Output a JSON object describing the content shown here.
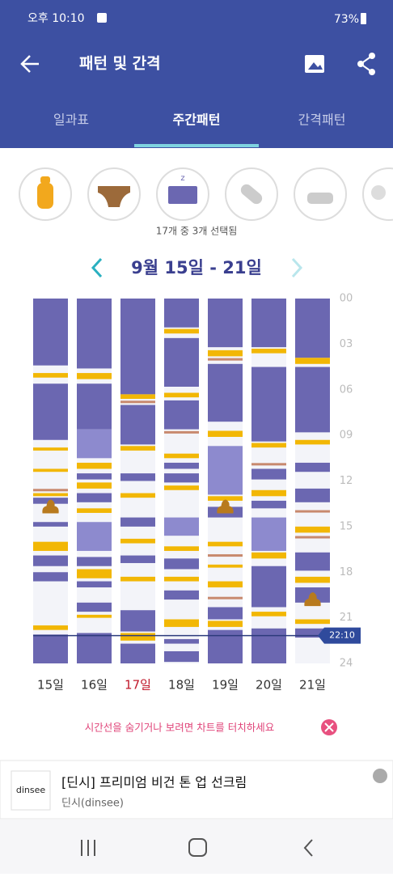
{
  "status_bar": {
    "time": "오후 10:10",
    "battery": "73%"
  },
  "header": {
    "title": "패턴 및 간격"
  },
  "tabs": {
    "items": [
      "일과표",
      "주간패턴",
      "간격패턴"
    ],
    "active": 1
  },
  "selection_text": "17개 중 3개 선택됨",
  "week_range": "9월 15일 - 21일",
  "chart": {
    "ylim": [
      0,
      24
    ],
    "yticks": [
      {
        "value": 0,
        "label": "00"
      },
      {
        "value": 3,
        "label": "03"
      },
      {
        "value": 6,
        "label": "06"
      },
      {
        "value": 9,
        "label": "09"
      },
      12,
      15,
      18,
      21,
      24
    ],
    "colors": {
      "sleep": "#6b67b1",
      "light": "#8d8ace",
      "feed": "#f2b705",
      "diaper": "#c8896e",
      "poop": "#b87a1e"
    },
    "current_time": {
      "value": 22.17,
      "label": "22:10"
    },
    "days": [
      {
        "label": "15일",
        "label_color": "#333333",
        "sleep": [
          [
            0,
            4.4
          ],
          [
            5.6,
            9.3
          ],
          [
            13.1,
            13.5
          ],
          [
            14.7,
            15.0
          ],
          [
            16.9,
            17.6
          ],
          [
            18.0,
            18.6
          ],
          [
            22.1,
            24
          ]
        ],
        "light": [],
        "feed": [
          [
            4.9,
            5.2
          ],
          [
            9.8,
            10.0
          ],
          [
            11.2,
            11.4
          ],
          [
            12.8,
            13.0
          ],
          [
            16.0,
            16.6
          ],
          [
            21.5,
            21.8
          ]
        ],
        "diaper": [
          12.6
        ],
        "poop": [
          13.7
        ]
      },
      {
        "label": "16일",
        "label_color": "#333333",
        "sleep": [
          [
            0,
            4.6
          ],
          [
            5.6,
            8.6
          ],
          [
            11.5,
            11.9
          ],
          [
            12.8,
            13.4
          ],
          [
            17.0,
            17.6
          ],
          [
            18.6,
            19.0
          ],
          [
            20.0,
            20.6
          ],
          [
            22.0,
            24
          ]
        ],
        "light": [
          [
            8.6,
            10.5
          ],
          [
            14.7,
            16.6
          ]
        ],
        "feed": [
          [
            4.9,
            5.3
          ],
          [
            10.8,
            11.2
          ],
          [
            12.1,
            12.5
          ],
          [
            13.8,
            14.1
          ],
          [
            17.8,
            18.4
          ],
          [
            20.8,
            21.0
          ]
        ],
        "diaper": [],
        "poop": []
      },
      {
        "label": "17일",
        "label_color": "#c0182a",
        "sleep": [
          [
            0,
            6.3
          ],
          [
            7.0,
            9.6
          ],
          [
            11.5,
            12.0
          ],
          [
            14.4,
            15.0
          ],
          [
            16.9,
            17.4
          ],
          [
            20.5,
            21.9
          ],
          [
            22.7,
            24
          ]
        ],
        "light": [],
        "feed": [
          [
            6.3,
            6.6
          ],
          [
            9.7,
            10.0
          ],
          [
            12.8,
            13.1
          ],
          [
            15.8,
            16.1
          ],
          [
            18.3,
            18.6
          ],
          [
            22.0,
            22.5
          ]
        ],
        "diaper": [
          6.8
        ],
        "poop": []
      },
      {
        "label": "18일",
        "label_color": "#333333",
        "sleep": [
          [
            0,
            1.9
          ],
          [
            2.6,
            5.8
          ],
          [
            6.7,
            8.6
          ],
          [
            10.8,
            11.2
          ],
          [
            11.5,
            12.1
          ],
          [
            17.1,
            17.8
          ],
          [
            19.2,
            19.8
          ],
          [
            22.4,
            22.7
          ],
          [
            23.2,
            23.9
          ]
        ],
        "light": [
          [
            14.4,
            15.6
          ]
        ],
        "feed": [
          [
            2.0,
            2.3
          ],
          [
            6.2,
            6.5
          ],
          [
            10.2,
            10.5
          ],
          [
            12.3,
            12.6
          ],
          [
            16.3,
            16.6
          ],
          [
            18.3,
            18.6
          ],
          [
            21.1,
            21.6
          ]
        ],
        "diaper": [
          8.8
        ],
        "poop": []
      },
      {
        "label": "19일",
        "label_color": "#333333",
        "sleep": [
          [
            0,
            3.2
          ],
          [
            4.3,
            8.1
          ],
          [
            13.7,
            14.4
          ],
          [
            20.3,
            21.1
          ],
          [
            21.8,
            24
          ]
        ],
        "light": [
          [
            9.7,
            12.9
          ]
        ],
        "feed": [
          [
            3.4,
            3.8
          ],
          [
            8.7,
            9.1
          ],
          [
            13.0,
            13.3
          ],
          [
            16.0,
            16.3
          ],
          [
            17.5,
            17.7
          ],
          [
            18.6,
            19.0
          ],
          [
            21.2,
            21.6
          ]
        ],
        "diaper": [
          4.0,
          16.9,
          19.7
        ],
        "poop": [
          13.7
        ]
      },
      {
        "label": "20일",
        "label_color": "#333333",
        "sleep": [
          [
            0,
            3.2
          ],
          [
            4.5,
            9.4
          ],
          [
            11.2,
            11.9
          ],
          [
            13.3,
            13.8
          ],
          [
            17.6,
            20.3
          ],
          [
            21.7,
            24
          ]
        ],
        "light": [
          [
            14.4,
            16.6
          ]
        ],
        "feed": [
          [
            3.3,
            3.6
          ],
          [
            9.5,
            9.8
          ],
          [
            12.6,
            13.0
          ],
          [
            16.7,
            17.1
          ],
          [
            20.6,
            20.9
          ]
        ],
        "diaper": [
          10.9
        ],
        "poop": []
      },
      {
        "label": "21일",
        "label_color": "#333333",
        "sleep": [
          [
            0,
            3.9
          ],
          [
            4.5,
            8.8
          ],
          [
            10.8,
            11.4
          ],
          [
            12.5,
            13.4
          ],
          [
            16.7,
            17.9
          ],
          [
            19.0,
            20.0
          ],
          [
            21.7,
            22.3
          ]
        ],
        "light": [],
        "feed": [
          [
            3.9,
            4.3
          ],
          [
            9.3,
            9.6
          ],
          [
            15.0,
            15.4
          ],
          [
            18.3,
            18.7
          ],
          [
            21.1,
            21.4
          ]
        ],
        "diaper": [
          14.0,
          15.7
        ],
        "poop": [
          19.8
        ]
      }
    ]
  },
  "hint": "시간선을 숨기거나 보려면 차트를 터치하세요",
  "ad": {
    "logo": "dinsee",
    "title": "[딘시] 프리미엄 비건 톤 업 선크림",
    "advertiser": "딘시(dinsee)"
  }
}
